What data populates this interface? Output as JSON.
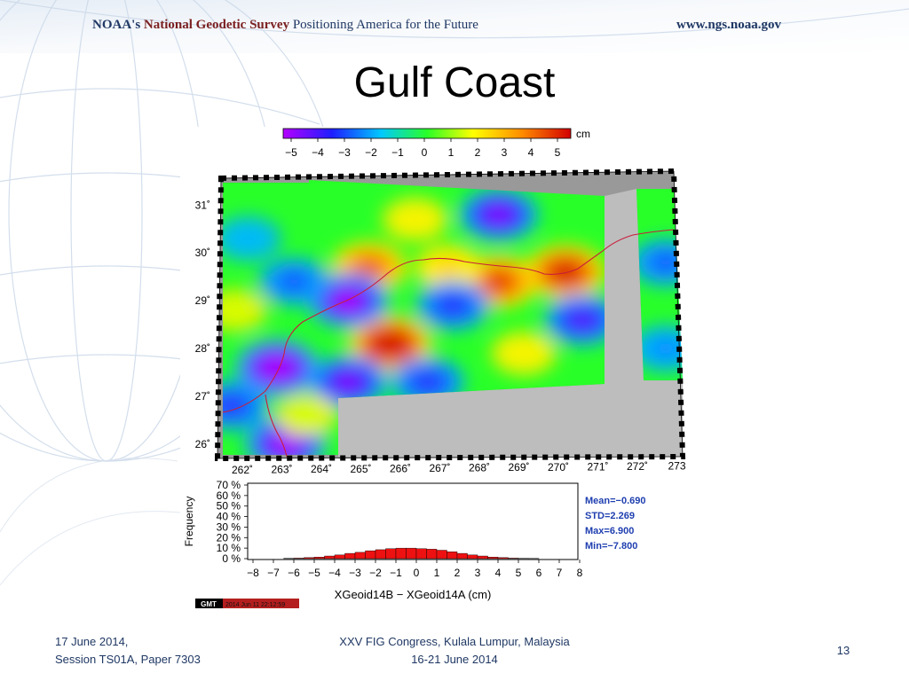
{
  "header": {
    "org": "NOAA's",
    "agency": "National Geodetic Survey",
    "tagline": "Positioning America for the Future",
    "url": "www.ngs.noaa.gov"
  },
  "slide": {
    "title": "Gulf Coast",
    "page_number": "13"
  },
  "footer": {
    "left_line1": "17 June 2014,",
    "left_line2": "Session TS01A, Paper 7303",
    "mid_line1": "XXV FIG Congress, Kulala Lumpur, Malaysia",
    "mid_line2": "16-21 June 2014"
  },
  "colors": {
    "header_text": "#1f3864",
    "agency_text": "#7a1f1f",
    "histogram_bar": "#ee1111",
    "stats_text": "#1f3fb0",
    "land_mask": "#999999",
    "no_data": "#bdbdbd"
  },
  "chart_data": [
    {
      "type": "heatmap",
      "colorbar": {
        "unit": "cm",
        "ticks": [
          "−5",
          "−4",
          "−3",
          "−2",
          "−1",
          "0",
          "1",
          "2",
          "3",
          "4",
          "5"
        ],
        "range": [
          -5,
          5
        ],
        "colors": [
          "#b400ff",
          "#1e1eff",
          "#00c8ff",
          "#28ff28",
          "#ffff00",
          "#ff8c00",
          "#d20000"
        ]
      },
      "lon_ticks": [
        "262˚",
        "263˚",
        "264˚",
        "265˚",
        "266˚",
        "267˚",
        "268˚",
        "269˚",
        "270˚",
        "271˚",
        "272˚",
        "273"
      ],
      "lat_ticks": [
        "31˚",
        "30˚",
        "29˚",
        "28˚",
        "27˚",
        "26˚"
      ],
      "lon_range": [
        262,
        273
      ],
      "lat_range": [
        25.7,
        31.6
      ],
      "features": [
        {
          "lon": 266.0,
          "lat": 28.1,
          "value": 5.5
        },
        {
          "lon": 265.5,
          "lat": 29.7,
          "value": 4.0
        },
        {
          "lon": 268.6,
          "lat": 29.4,
          "value": 4.5
        },
        {
          "lon": 267.4,
          "lat": 29.7,
          "value": 2.5
        },
        {
          "lon": 270.2,
          "lat": 29.6,
          "value": 5.0
        },
        {
          "lon": 263.3,
          "lat": 27.6,
          "value": -5.5
        },
        {
          "lon": 263.5,
          "lat": 26.0,
          "value": -5.0
        },
        {
          "lon": 265.0,
          "lat": 29.0,
          "value": -5.0
        },
        {
          "lon": 265.0,
          "lat": 27.3,
          "value": -4.5
        },
        {
          "lon": 268.6,
          "lat": 30.8,
          "value": -4.5
        },
        {
          "lon": 266.9,
          "lat": 27.3,
          "value": -3.5
        },
        {
          "lon": 267.5,
          "lat": 28.9,
          "value": -3.5
        },
        {
          "lon": 270.6,
          "lat": 28.6,
          "value": -4.0
        },
        {
          "lon": 272.6,
          "lat": 29.8,
          "value": -3.0
        },
        {
          "lon": 272.6,
          "lat": 28.0,
          "value": -2.5
        },
        {
          "lon": 263.7,
          "lat": 29.4,
          "value": -3.0
        },
        {
          "lon": 262.2,
          "lat": 26.8,
          "value": -3.5
        },
        {
          "lon": 262.6,
          "lat": 30.3,
          "value": -2.0
        },
        {
          "lon": 266.6,
          "lat": 30.7,
          "value": 2.0
        },
        {
          "lon": 269.2,
          "lat": 27.9,
          "value": 2.0
        },
        {
          "lon": 262.3,
          "lat": 28.8,
          "value": 1.5
        },
        {
          "lon": 264.0,
          "lat": 26.6,
          "value": 1.5
        }
      ]
    },
    {
      "type": "bar",
      "xlabel": "XGeoid14B − XGeoid14A (cm)",
      "ylabel": "Frequency",
      "x_ticks": [
        "−8",
        "−7",
        "−6",
        "−5",
        "−4",
        "−3",
        "−2",
        "−1",
        "0",
        "1",
        "2",
        "3",
        "4",
        "5",
        "6",
        "7",
        "8"
      ],
      "y_ticks": [
        "0 %",
        "10 %",
        "20 %",
        "30 %",
        "40 %",
        "50 %",
        "60 %",
        "70 %"
      ],
      "xlim": [
        -8,
        8
      ],
      "ylim": [
        0,
        70
      ],
      "bin_width": 0.5,
      "bins": [
        -6.5,
        -6,
        -5.5,
        -5,
        -4.5,
        -4,
        -3.5,
        -3,
        -2.5,
        -2,
        -1.5,
        -1,
        -0.5,
        0,
        0.5,
        1,
        1.5,
        2,
        2.5,
        3,
        3.5,
        4,
        4.5,
        5,
        5.5
      ],
      "values": [
        0.3,
        0.5,
        1,
        1.5,
        2.5,
        3.5,
        5,
        6,
        7.5,
        8.5,
        9.5,
        10,
        10,
        9.5,
        9,
        8,
        6.5,
        5,
        3.5,
        2.5,
        1.5,
        1,
        0.5,
        0.3,
        0.2
      ],
      "stats": {
        "mean": "Mean=−0.690",
        "std": "STD=2.269",
        "max": "Max=6.900",
        "min": "Min=−7.800"
      },
      "gmt_stamp": "2014 Jun 11 22:12:59",
      "gmt_logo": "GMT"
    }
  ]
}
